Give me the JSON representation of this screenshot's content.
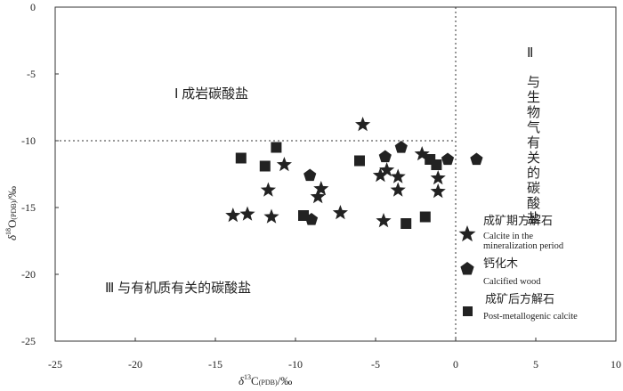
{
  "chart_data": {
    "type": "scatter",
    "xlabel": {
      "delta": "δ",
      "sup": "13",
      "main": "C",
      "sub": "(PDB)",
      "unit": "/‰"
    },
    "ylabel": {
      "delta": "δ",
      "sup": "18",
      "main": "O",
      "sub": "(PDB)",
      "unit": "/‰"
    },
    "xlim": [
      -25,
      10
    ],
    "ylim": [
      -25,
      0
    ],
    "xticks": [
      -25,
      -20,
      -15,
      -10,
      -5,
      0,
      5,
      10
    ],
    "yticks": [
      0,
      -5,
      -10,
      -15,
      -20,
      -25
    ],
    "dividers": {
      "x": 0,
      "y": -10,
      "style": "dotted"
    },
    "regions": {
      "I": "Ⅰ  成岩碳酸盐",
      "II_num": "Ⅱ",
      "II": "与生物气有关的碳酸盐",
      "III": "Ⅲ  与有机质有关的碳酸盐"
    },
    "series": [
      {
        "name": "成矿期方解石",
        "name_en": "Calcite in the mineralization period",
        "marker": "star",
        "points": [
          [
            -5.8,
            -8.8
          ],
          [
            -10.7,
            -11.8
          ],
          [
            -11.7,
            -13.7
          ],
          [
            -8.4,
            -13.6
          ],
          [
            -8.6,
            -14.2
          ],
          [
            -13.9,
            -15.6
          ],
          [
            -13.0,
            -15.5
          ],
          [
            -11.5,
            -15.7
          ],
          [
            -7.2,
            -15.4
          ],
          [
            -4.5,
            -16.0
          ],
          [
            -2.1,
            -11.0
          ],
          [
            -4.7,
            -12.6
          ],
          [
            -4.3,
            -12.2
          ],
          [
            -3.6,
            -12.7
          ],
          [
            -3.6,
            -13.7
          ],
          [
            -1.1,
            -12.8
          ],
          [
            -1.1,
            -13.8
          ]
        ]
      },
      {
        "name": "钙化木",
        "name_en": "Calcified wood",
        "marker": "pentagon",
        "points": [
          [
            -3.4,
            -10.5
          ],
          [
            -4.4,
            -11.2
          ],
          [
            -0.5,
            -11.4
          ],
          [
            1.3,
            -11.4
          ],
          [
            -9.1,
            -12.6
          ],
          [
            -9.0,
            -15.9
          ]
        ]
      },
      {
        "name": "成矿后方解石",
        "name_en": "Post-metallogenic calcite",
        "marker": "square",
        "points": [
          [
            -11.2,
            -10.5
          ],
          [
            -13.4,
            -11.3
          ],
          [
            -11.9,
            -11.9
          ],
          [
            -6.0,
            -11.5
          ],
          [
            -1.6,
            -11.4
          ],
          [
            -1.2,
            -11.8
          ],
          [
            -9.5,
            -15.6
          ],
          [
            -3.1,
            -16.2
          ],
          [
            -1.9,
            -15.7
          ]
        ]
      }
    ]
  }
}
